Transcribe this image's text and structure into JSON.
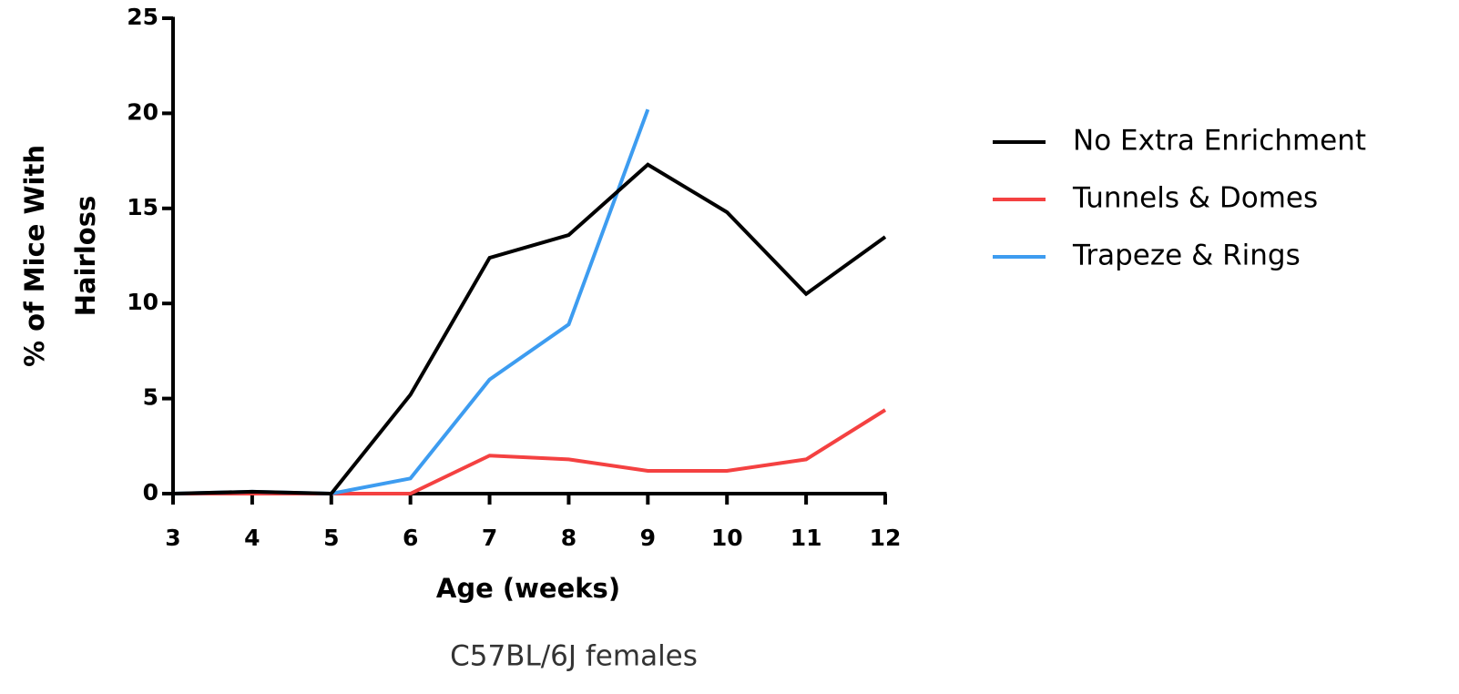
{
  "chart_data": {
    "type": "line",
    "subtitle": "C57BL/6J females",
    "x_label": "Age (weeks)",
    "y_label": [
      "% of Mice With",
      "Hairloss"
    ],
    "x": [
      3,
      4,
      5,
      6,
      7,
      8,
      9,
      10,
      11,
      12
    ],
    "series": [
      {
        "name": "No Extra Enrichment",
        "color": "#000000",
        "values": [
          0,
          0.1,
          0,
          5.2,
          12.4,
          13.6,
          17.3,
          14.8,
          10.5,
          13.5
        ]
      },
      {
        "name": "Tunnels & Domes",
        "color": "#f44141",
        "values": [
          0,
          0,
          0,
          0,
          2.0,
          1.8,
          1.2,
          1.2,
          1.8,
          4.4
        ]
      },
      {
        "name": "Trapeze & Rings",
        "color": "#3d9cf0",
        "values": [
          0,
          0.1,
          0,
          0.8,
          6.0,
          8.9,
          20.2,
          null,
          null,
          null
        ]
      }
    ],
    "xlim": [
      3,
      12
    ],
    "xticks": [
      3,
      4,
      5,
      6,
      7,
      8,
      9,
      10,
      11,
      12
    ],
    "ylim": [
      0,
      25
    ],
    "yticks": [
      0,
      5,
      10,
      15,
      20,
      25
    ],
    "grid": false,
    "legend": "right"
  }
}
